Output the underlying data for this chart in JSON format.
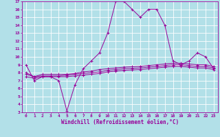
{
  "xlabel": "Windchill (Refroidissement éolien,°C)",
  "bg_color": "#b2e0e8",
  "grid_color": "#c8dde0",
  "line_color": "#990099",
  "xlim": [
    -0.5,
    23.5
  ],
  "ylim": [
    3,
    17
  ],
  "xticks": [
    0,
    1,
    2,
    3,
    4,
    5,
    6,
    7,
    8,
    9,
    10,
    11,
    12,
    13,
    14,
    15,
    16,
    17,
    18,
    19,
    20,
    21,
    22,
    23
  ],
  "yticks": [
    3,
    4,
    5,
    6,
    7,
    8,
    9,
    10,
    11,
    12,
    13,
    14,
    15,
    16,
    17
  ],
  "main_x": [
    0,
    1,
    2,
    3,
    4,
    5,
    6,
    7,
    8,
    9,
    10,
    11,
    12,
    13,
    14,
    15,
    16,
    17,
    18,
    19,
    20,
    21,
    22,
    23
  ],
  "main_y": [
    9,
    7,
    7.5,
    7.5,
    7,
    3.2,
    6.5,
    8.5,
    9.5,
    10.5,
    13,
    17,
    17,
    16,
    15,
    16,
    16,
    14,
    9.5,
    9,
    9.5,
    10.5,
    10,
    8.5
  ],
  "line2_x": [
    0,
    1,
    2,
    3,
    4,
    5,
    6,
    7,
    8,
    9,
    10,
    11,
    12,
    13,
    14,
    15,
    16,
    17,
    18,
    19,
    20,
    21,
    22,
    23
  ],
  "line2_y": [
    8.0,
    7.5,
    7.8,
    7.8,
    7.8,
    7.8,
    7.9,
    8.1,
    8.2,
    8.4,
    8.5,
    8.6,
    8.7,
    8.75,
    8.8,
    8.9,
    9.0,
    9.1,
    9.2,
    9.2,
    9.1,
    9.0,
    9.0,
    8.8
  ],
  "line3_x": [
    0,
    1,
    2,
    3,
    4,
    5,
    6,
    7,
    8,
    9,
    10,
    11,
    12,
    13,
    14,
    15,
    16,
    17,
    18,
    19,
    20,
    21,
    22,
    23
  ],
  "line3_y": [
    7.8,
    7.5,
    7.6,
    7.6,
    7.6,
    7.7,
    7.8,
    7.9,
    8.0,
    8.1,
    8.3,
    8.4,
    8.5,
    8.55,
    8.6,
    8.7,
    8.8,
    8.9,
    9.0,
    9.0,
    8.9,
    8.8,
    8.8,
    8.6
  ],
  "line4_x": [
    0,
    1,
    2,
    3,
    4,
    5,
    6,
    7,
    8,
    9,
    10,
    11,
    12,
    13,
    14,
    15,
    16,
    17,
    18,
    19,
    20,
    21,
    22,
    23
  ],
  "line4_y": [
    7.5,
    7.3,
    7.5,
    7.5,
    7.5,
    7.5,
    7.6,
    7.7,
    7.8,
    7.9,
    8.1,
    8.2,
    8.3,
    8.35,
    8.4,
    8.5,
    8.6,
    8.7,
    8.8,
    8.8,
    8.7,
    8.6,
    8.6,
    8.4
  ]
}
